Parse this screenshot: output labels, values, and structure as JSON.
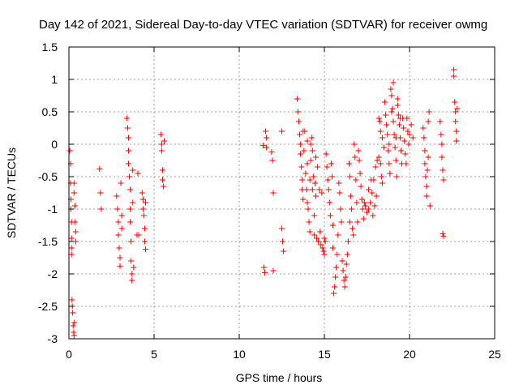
{
  "chart_data": {
    "type": "scatter",
    "title": "Day 142 of 2021, Sidereal Day-to-day VTEC variation (SDTVAR) for receiver owmg",
    "xlabel": "GPS time / hours",
    "ylabel": "SDTVAR / TECUs",
    "xlim": [
      0,
      25
    ],
    "ylim": [
      -3,
      1.5
    ],
    "xticks": [
      0,
      5,
      10,
      15,
      20,
      25
    ],
    "xtick_labels": [
      "0",
      "5",
      "10",
      "15",
      "20",
      "25"
    ],
    "yticks": [
      -3,
      -2.5,
      -2,
      -1.5,
      -1,
      -0.5,
      0,
      0.5,
      1,
      1.5
    ],
    "ytick_labels": [
      "-3",
      "-2.5",
      "-2",
      "-1.5",
      "-1",
      "-0.5",
      "0",
      "0.5",
      "1",
      "1.5"
    ],
    "grid": true,
    "marker": "+",
    "color": "#ff0000",
    "series": [
      {
        "name": "SDTVAR",
        "points": [
          [
            0.05,
            -0.1
          ],
          [
            0.1,
            -0.3
          ],
          [
            0.1,
            -0.6
          ],
          [
            0.12,
            -0.85
          ],
          [
            0.12,
            -1.0
          ],
          [
            0.15,
            -1.2
          ],
          [
            0.15,
            -1.45
          ],
          [
            0.15,
            -1.6
          ],
          [
            0.15,
            -1.7
          ],
          [
            0.18,
            -2.4
          ],
          [
            0.2,
            -2.5
          ],
          [
            0.22,
            -2.6
          ],
          [
            0.25,
            -2.8
          ],
          [
            0.28,
            -2.9
          ],
          [
            0.3,
            -0.6
          ],
          [
            0.3,
            -0.75
          ],
          [
            0.35,
            -0.95
          ],
          [
            0.35,
            -1.2
          ],
          [
            0.4,
            -1.35
          ],
          [
            0.4,
            -1.5
          ],
          [
            0.3,
            -2.95
          ],
          [
            0.32,
            -2.75
          ],
          [
            1.8,
            -0.38
          ],
          [
            1.85,
            -0.75
          ],
          [
            1.9,
            -1.0
          ],
          [
            2.8,
            -0.8
          ],
          [
            2.85,
            -1.0
          ],
          [
            2.9,
            -1.2
          ],
          [
            2.9,
            -1.4
          ],
          [
            2.95,
            -1.6
          ],
          [
            3.0,
            -1.75
          ],
          [
            3.0,
            -1.88
          ],
          [
            3.05,
            -0.6
          ],
          [
            3.1,
            -1.1
          ],
          [
            3.1,
            -1.3
          ],
          [
            3.4,
            0.4
          ],
          [
            3.45,
            0.25
          ],
          [
            3.5,
            0.1
          ],
          [
            3.5,
            -0.1
          ],
          [
            3.5,
            -0.3
          ],
          [
            3.55,
            -0.5
          ],
          [
            3.6,
            -0.7
          ],
          [
            3.6,
            -1.0
          ],
          [
            3.6,
            -1.2
          ],
          [
            3.65,
            -1.5
          ],
          [
            3.65,
            -1.8
          ],
          [
            3.7,
            -2.0
          ],
          [
            3.7,
            -2.1
          ],
          [
            3.75,
            -0.4
          ],
          [
            3.75,
            -0.9
          ],
          [
            3.8,
            -1.9
          ],
          [
            4.0,
            -1.4
          ],
          [
            4.05,
            -0.45
          ],
          [
            4.1,
            -1.4
          ],
          [
            4.3,
            -0.75
          ],
          [
            4.35,
            -0.85
          ],
          [
            4.35,
            -1.0
          ],
          [
            4.4,
            -1.1
          ],
          [
            4.45,
            -1.3
          ],
          [
            4.45,
            -1.5
          ],
          [
            4.5,
            -1.62
          ],
          [
            4.5,
            -0.9
          ],
          [
            5.4,
            0.15
          ],
          [
            5.45,
            0.0
          ],
          [
            5.45,
            -0.1
          ],
          [
            5.5,
            -0.4
          ],
          [
            5.5,
            -0.55
          ],
          [
            5.55,
            -0.65
          ],
          [
            5.6,
            0.05
          ],
          [
            11.4,
            -0.02
          ],
          [
            11.45,
            -1.9
          ],
          [
            11.5,
            -1.98
          ],
          [
            11.55,
            0.2
          ],
          [
            11.6,
            0.1
          ],
          [
            11.6,
            -0.05
          ],
          [
            11.9,
            -0.12
          ],
          [
            11.95,
            -0.25
          ],
          [
            12.0,
            -0.75
          ],
          [
            12.0,
            -1.95
          ],
          [
            12.5,
            0.2
          ],
          [
            12.5,
            -1.3
          ],
          [
            12.55,
            -1.5
          ],
          [
            12.6,
            -1.65
          ],
          [
            13.4,
            0.7
          ],
          [
            13.45,
            0.5
          ],
          [
            13.5,
            0.35
          ],
          [
            13.55,
            0.15
          ],
          [
            13.6,
            0.0
          ],
          [
            13.6,
            -0.15
          ],
          [
            13.65,
            -0.35
          ],
          [
            13.7,
            -0.55
          ],
          [
            13.7,
            -0.7
          ],
          [
            13.75,
            -0.85
          ],
          [
            13.8,
            -0.1
          ],
          [
            13.85,
            0.2
          ],
          [
            13.9,
            -0.45
          ],
          [
            13.95,
            -0.7
          ],
          [
            14.0,
            -0.3
          ],
          [
            14.0,
            -0.9
          ],
          [
            14.05,
            -1.0
          ],
          [
            14.1,
            -1.2
          ],
          [
            14.15,
            -1.35
          ],
          [
            14.2,
            -0.25
          ],
          [
            14.25,
            0.1
          ],
          [
            14.3,
            -0.1
          ],
          [
            14.35,
            -0.5
          ],
          [
            14.4,
            -1.1
          ],
          [
            14.4,
            -1.4
          ],
          [
            14.45,
            -0.6
          ],
          [
            14.5,
            -0.2
          ],
          [
            14.5,
            -0.8
          ],
          [
            14.55,
            -1.45
          ],
          [
            14.6,
            -0.35
          ],
          [
            14.65,
            -1.5
          ],
          [
            14.7,
            -0.7
          ],
          [
            14.75,
            -1.35
          ],
          [
            14.8,
            -1.55
          ],
          [
            14.85,
            -0.75
          ],
          [
            14.9,
            -1.6
          ],
          [
            14.95,
            -1.65
          ],
          [
            15.0,
            -1.7
          ],
          [
            15.0,
            -1.45
          ],
          [
            15.05,
            -1.5
          ],
          [
            14.0,
            0.05
          ],
          [
            13.75,
            0.2
          ],
          [
            14.2,
            0.0
          ],
          [
            14.15,
            -0.55
          ],
          [
            14.3,
            -0.7
          ],
          [
            15.1,
            -0.15
          ],
          [
            15.15,
            -0.35
          ],
          [
            15.2,
            -0.55
          ],
          [
            15.25,
            -0.7
          ],
          [
            15.3,
            -0.9
          ],
          [
            15.35,
            -1.1
          ],
          [
            15.4,
            -0.3
          ],
          [
            15.45,
            -0.5
          ],
          [
            15.5,
            -1.25
          ],
          [
            15.5,
            -1.6
          ],
          [
            15.55,
            -2.3
          ],
          [
            15.6,
            -2.2
          ],
          [
            15.65,
            -2.05
          ],
          [
            15.7,
            -1.9
          ],
          [
            15.75,
            -1.7
          ],
          [
            15.8,
            -1.4
          ],
          [
            15.85,
            -0.6
          ],
          [
            15.9,
            -0.75
          ],
          [
            15.95,
            -1.0
          ],
          [
            16.0,
            -1.2
          ],
          [
            16.05,
            -1.8
          ],
          [
            16.1,
            -1.95
          ],
          [
            16.15,
            -2.1
          ],
          [
            16.2,
            -2.2
          ],
          [
            16.25,
            -2.05
          ],
          [
            16.3,
            -1.85
          ],
          [
            16.35,
            -1.7
          ],
          [
            16.4,
            -1.5
          ],
          [
            16.45,
            -0.3
          ],
          [
            16.5,
            -0.5
          ],
          [
            16.5,
            -1.2
          ],
          [
            16.55,
            -0.8
          ],
          [
            16.6,
            -1.0
          ],
          [
            16.65,
            -1.3
          ],
          [
            16.7,
            -1.4
          ],
          [
            16.75,
            0.0
          ],
          [
            16.8,
            -0.2
          ],
          [
            16.85,
            -0.55
          ],
          [
            16.9,
            -0.9
          ],
          [
            16.95,
            -1.2
          ],
          [
            17.0,
            -0.1
          ],
          [
            17.05,
            -0.25
          ],
          [
            17.1,
            -0.45
          ],
          [
            17.15,
            -0.65
          ],
          [
            17.2,
            -0.85
          ],
          [
            17.25,
            -1.0
          ],
          [
            17.3,
            -1.15
          ],
          [
            17.35,
            -0.9
          ],
          [
            17.4,
            -0.95
          ],
          [
            17.5,
            -1.05
          ],
          [
            17.6,
            -1.0
          ],
          [
            17.7,
            -0.9
          ],
          [
            17.8,
            -0.75
          ],
          [
            17.9,
            -0.55
          ],
          [
            18.0,
            -0.35
          ],
          [
            18.1,
            -0.25
          ],
          [
            18.2,
            -0.2
          ],
          [
            18.3,
            -0.3
          ],
          [
            18.35,
            -0.5
          ],
          [
            18.4,
            -0.6
          ],
          [
            17.6,
            -0.7
          ],
          [
            17.75,
            -0.55
          ],
          [
            17.85,
            -1.1
          ],
          [
            17.95,
            -0.95
          ],
          [
            18.05,
            -0.8
          ],
          [
            18.2,
            0.4
          ],
          [
            18.25,
            0.35
          ],
          [
            18.3,
            0.2
          ],
          [
            18.4,
            0.1
          ],
          [
            18.5,
            -0.05
          ],
          [
            18.55,
            0.65
          ],
          [
            18.6,
            0.45
          ],
          [
            18.65,
            0.3
          ],
          [
            18.7,
            0.15
          ],
          [
            18.75,
            -0.1
          ],
          [
            18.8,
            -0.3
          ],
          [
            18.85,
            -0.45
          ],
          [
            18.9,
            0.85
          ],
          [
            18.95,
            0.75
          ],
          [
            19.0,
            0.55
          ],
          [
            19.05,
            0.35
          ],
          [
            19.1,
            0.15
          ],
          [
            19.15,
            -0.05
          ],
          [
            19.2,
            -0.25
          ],
          [
            19.25,
            -0.5
          ],
          [
            19.3,
            0.6
          ],
          [
            19.35,
            0.45
          ],
          [
            19.4,
            0.3
          ],
          [
            19.45,
            0.1
          ],
          [
            19.5,
            -0.1
          ],
          [
            19.55,
            -0.3
          ],
          [
            19.6,
            0.4
          ],
          [
            19.65,
            0.25
          ],
          [
            19.7,
            0.05
          ],
          [
            19.75,
            -0.15
          ],
          [
            19.8,
            -0.3
          ],
          [
            19.85,
            0.4
          ],
          [
            19.9,
            0.2
          ],
          [
            19.95,
            0.0
          ],
          [
            20.0,
            0.15
          ],
          [
            20.1,
            0.3
          ],
          [
            20.2,
            0.1
          ],
          [
            19.05,
            0.95
          ],
          [
            19.3,
            0.7
          ],
          [
            18.95,
            0.5
          ],
          [
            19.45,
            0.4
          ],
          [
            19.2,
            0.1
          ],
          [
            18.8,
            0.0
          ],
          [
            20.8,
            0.25
          ],
          [
            20.85,
            0.1
          ],
          [
            20.9,
            -0.1
          ],
          [
            20.9,
            -0.3
          ],
          [
            20.95,
            -0.5
          ],
          [
            21.0,
            -0.65
          ],
          [
            21.0,
            -0.8
          ],
          [
            21.05,
            -0.4
          ],
          [
            21.1,
            -0.2
          ],
          [
            21.1,
            0.35
          ],
          [
            21.15,
            0.5
          ],
          [
            21.2,
            -0.95
          ],
          [
            21.8,
            0.35
          ],
          [
            21.85,
            0.15
          ],
          [
            21.9,
            0.0
          ],
          [
            21.9,
            -0.2
          ],
          [
            21.95,
            -0.4
          ],
          [
            22.0,
            -0.55
          ],
          [
            21.95,
            -1.38
          ],
          [
            22.0,
            -1.42
          ],
          [
            22.6,
            1.15
          ],
          [
            22.6,
            1.05
          ],
          [
            22.65,
            0.65
          ],
          [
            22.7,
            0.5
          ],
          [
            22.7,
            0.35
          ],
          [
            22.75,
            0.2
          ],
          [
            22.75,
            0.05
          ],
          [
            22.8,
            0.55
          ]
        ]
      }
    ]
  }
}
